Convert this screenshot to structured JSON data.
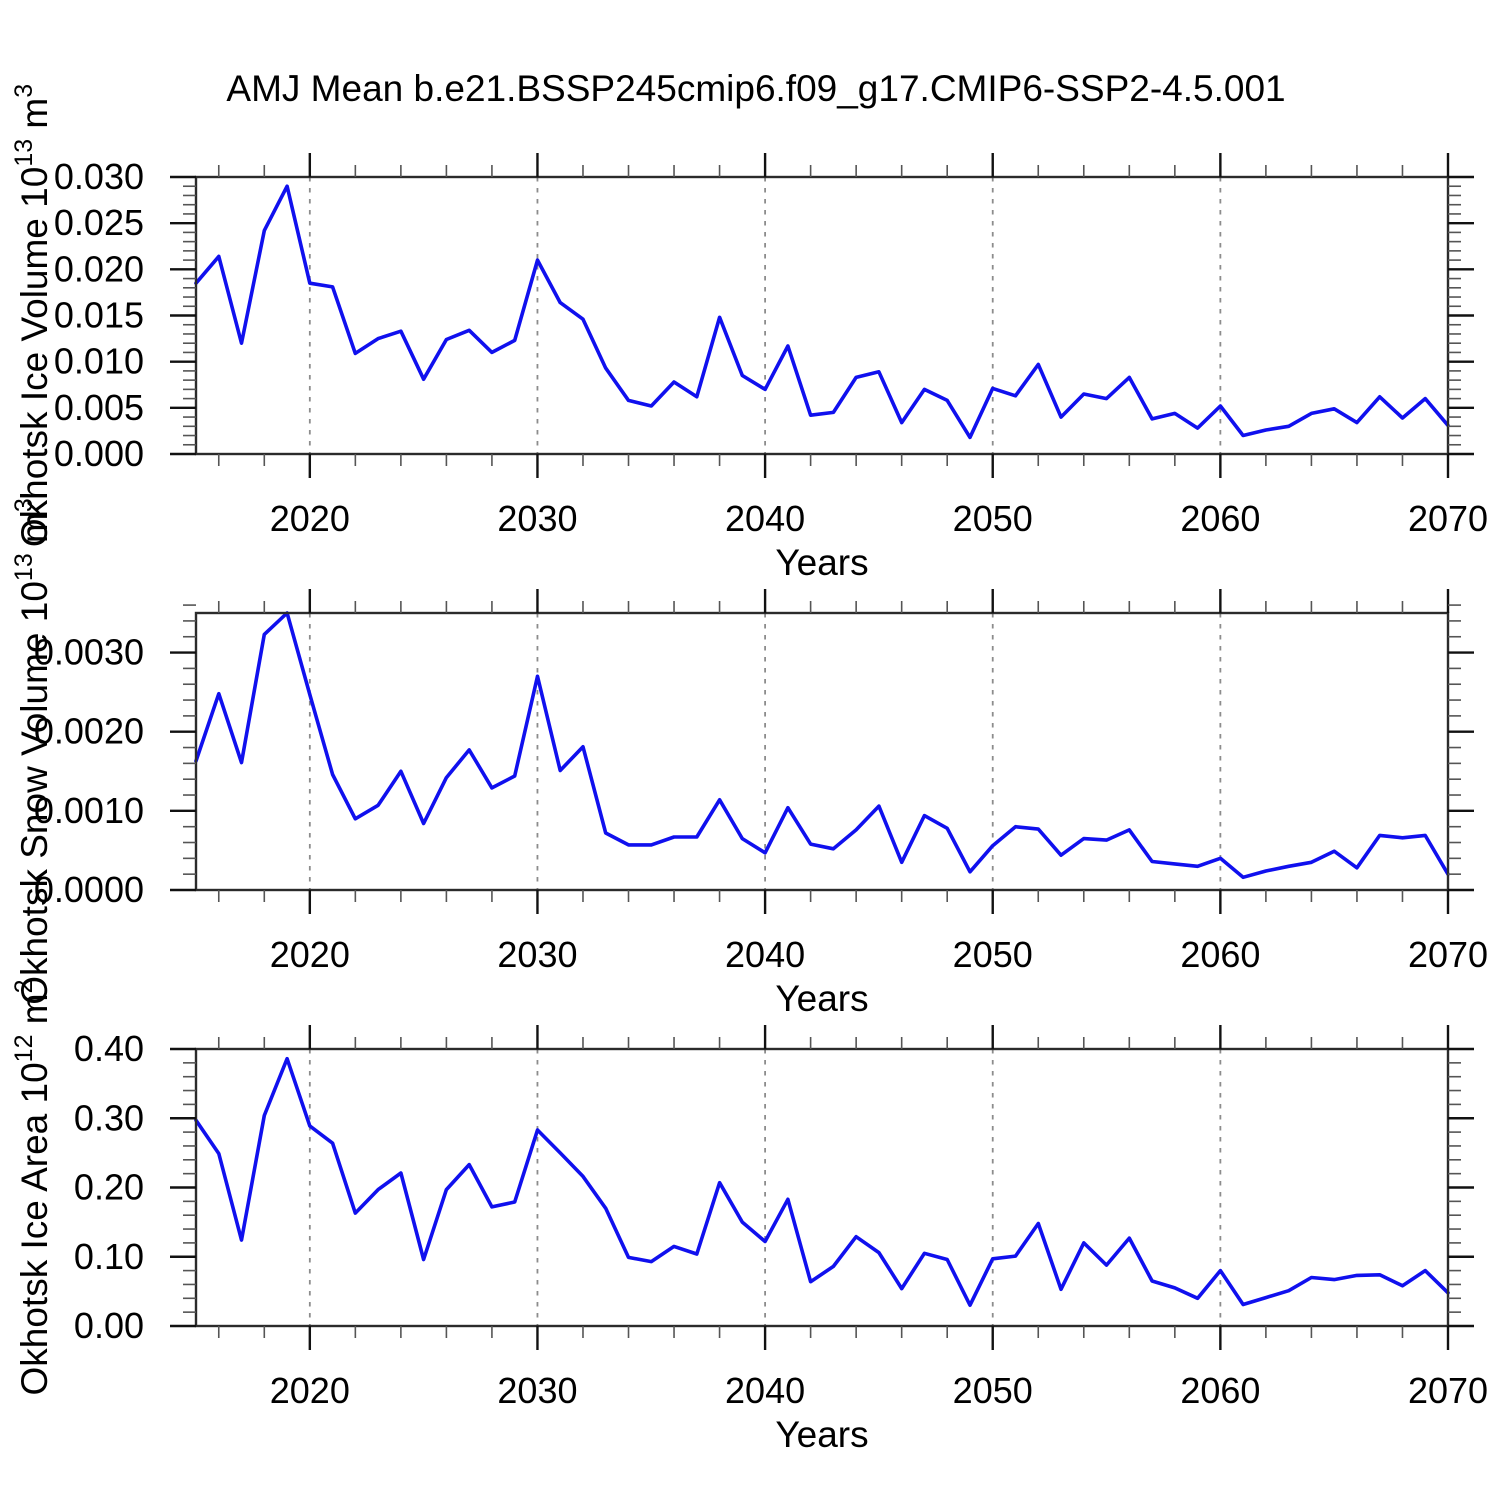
{
  "title": "AMJ Mean b.e21.BSSP245cmip6.f09_g17.CMIP6-SSP2-4.5.001",
  "colors": {
    "line": "#1010EE",
    "gridline": "#8c8c8c",
    "frame": "#2b2b2b",
    "tick_major": "#111111",
    "tick_minor": "#555555",
    "text": "#000000",
    "background": "#ffffff"
  },
  "x_axis": {
    "label": "Years",
    "start": 2015,
    "end": 2070,
    "major_ticks": [
      2020,
      2030,
      2040,
      2050,
      2060,
      2070
    ],
    "major_tick_labels": [
      "2020",
      "2030",
      "2040",
      "2050",
      "2060",
      "2070"
    ],
    "minor_tick_step": 2,
    "gridline_years": [
      2020,
      2030,
      2040,
      2050,
      2060
    ]
  },
  "years": [
    2015,
    2016,
    2017,
    2018,
    2019,
    2020,
    2021,
    2022,
    2023,
    2024,
    2025,
    2026,
    2027,
    2028,
    2029,
    2030,
    2031,
    2032,
    2033,
    2034,
    2035,
    2036,
    2037,
    2038,
    2039,
    2040,
    2041,
    2042,
    2043,
    2044,
    2045,
    2046,
    2047,
    2048,
    2049,
    2050,
    2051,
    2052,
    2053,
    2054,
    2055,
    2056,
    2057,
    2058,
    2059,
    2060,
    2061,
    2062,
    2063,
    2064,
    2065,
    2066,
    2067,
    2068,
    2069,
    2070
  ],
  "chart_data": [
    {
      "type": "line",
      "name": "ice-volume",
      "ylabel": "Okhotsk Ice Volume 10^13 m^3",
      "ylabel_parts": {
        "base": "Okhotsk Ice Volume 10",
        "exp": "13",
        "unit": " m",
        "unit_exp": "3"
      },
      "xlabel": "Years",
      "ylim": [
        0,
        0.03
      ],
      "ytick_values": [
        0.0,
        0.005,
        0.01,
        0.015,
        0.02,
        0.025,
        0.03
      ],
      "ytick_labels": [
        "0.000",
        "0.005",
        "0.010",
        "0.015",
        "0.020",
        "0.025",
        "0.030"
      ],
      "y_minor_step": 0.001,
      "grid": "vertical-dashed",
      "legend": "none",
      "values": [
        0.0185,
        0.0214,
        0.012,
        0.0242,
        0.029,
        0.0185,
        0.0181,
        0.0109,
        0.0125,
        0.0133,
        0.0081,
        0.0124,
        0.0134,
        0.011,
        0.0123,
        0.021,
        0.0164,
        0.0146,
        0.0093,
        0.0058,
        0.0052,
        0.0078,
        0.0062,
        0.0148,
        0.0085,
        0.007,
        0.0117,
        0.0042,
        0.0045,
        0.0083,
        0.0089,
        0.0034,
        0.007,
        0.0058,
        0.0018,
        0.0071,
        0.0063,
        0.0097,
        0.004,
        0.0065,
        0.006,
        0.0083,
        0.0038,
        0.0044,
        0.0028,
        0.0052,
        0.002,
        0.0026,
        0.003,
        0.0044,
        0.0049,
        0.0034,
        0.0062,
        0.0039,
        0.006,
        0.0031
      ]
    },
    {
      "type": "line",
      "name": "snow-volume",
      "ylabel": "Okhotsk Snow Volume 10^13 m^3",
      "ylabel_parts": {
        "base": "Okhotsk Snow Volume 10",
        "exp": "13",
        "unit": " m",
        "unit_exp": "3"
      },
      "xlabel": "Years",
      "ylim": [
        0,
        0.0035
      ],
      "ytick_values": [
        0.0,
        0.001,
        0.002,
        0.003
      ],
      "ytick_labels": [
        "0.0000",
        "0.0010",
        "0.0020",
        "0.0030"
      ],
      "y_minor_step": 0.0002,
      "grid": "vertical-dashed",
      "legend": "none",
      "values": [
        0.00163,
        0.00248,
        0.00161,
        0.00323,
        0.0035,
        0.00247,
        0.00146,
        0.0009,
        0.00107,
        0.0015,
        0.00084,
        0.00142,
        0.00177,
        0.00129,
        0.00144,
        0.0027,
        0.00151,
        0.00181,
        0.00072,
        0.00057,
        0.00057,
        0.00067,
        0.00067,
        0.00114,
        0.00065,
        0.00047,
        0.00104,
        0.00058,
        0.00052,
        0.00076,
        0.00106,
        0.00035,
        0.00094,
        0.00078,
        0.00023,
        0.00056,
        0.0008,
        0.00077,
        0.00044,
        0.00065,
        0.00063,
        0.00076,
        0.00036,
        0.00033,
        0.0003,
        0.0004,
        0.00016,
        0.00024,
        0.0003,
        0.00035,
        0.00049,
        0.00028,
        0.00069,
        0.00066,
        0.00069,
        0.0002
      ]
    },
    {
      "type": "line",
      "name": "ice-area",
      "ylabel": "Okhotsk Ice Area 10^12 m^2",
      "ylabel_parts": {
        "base": "Okhotsk Ice Area 10",
        "exp": "12",
        "unit": " m",
        "unit_exp": "2"
      },
      "xlabel": "Years",
      "ylim": [
        0,
        0.4
      ],
      "ytick_values": [
        0.0,
        0.1,
        0.2,
        0.3,
        0.4
      ],
      "ytick_labels": [
        "0.00",
        "0.10",
        "0.20",
        "0.30",
        "0.40"
      ],
      "y_minor_step": 0.02,
      "grid": "vertical-dashed",
      "legend": "none",
      "values": [
        0.297,
        0.249,
        0.124,
        0.304,
        0.386,
        0.289,
        0.264,
        0.163,
        0.197,
        0.221,
        0.096,
        0.197,
        0.233,
        0.172,
        0.179,
        0.283,
        0.25,
        0.216,
        0.17,
        0.099,
        0.093,
        0.115,
        0.104,
        0.207,
        0.15,
        0.122,
        0.183,
        0.064,
        0.086,
        0.129,
        0.106,
        0.054,
        0.105,
        0.096,
        0.03,
        0.097,
        0.101,
        0.148,
        0.053,
        0.12,
        0.088,
        0.127,
        0.065,
        0.055,
        0.04,
        0.08,
        0.031,
        0.041,
        0.051,
        0.07,
        0.067,
        0.073,
        0.074,
        0.058,
        0.08,
        0.048
      ]
    }
  ]
}
